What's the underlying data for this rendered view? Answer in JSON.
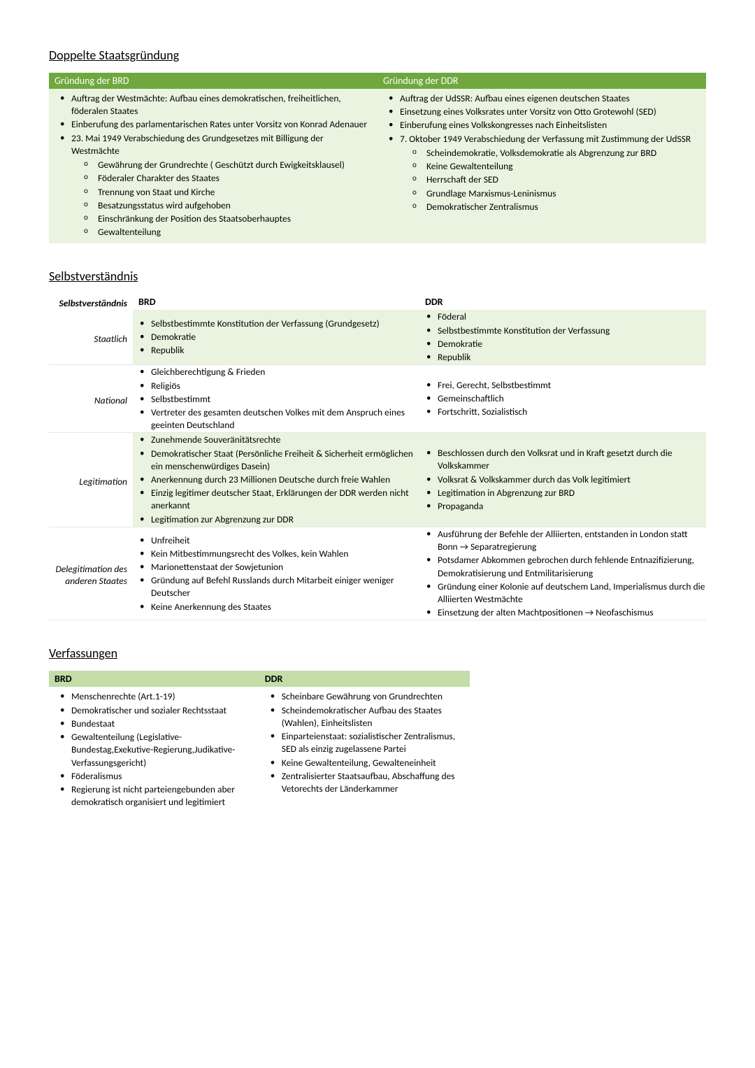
{
  "colors": {
    "header_green": "#6ea83e",
    "light_green": "#c3dca8",
    "shaded_green": "#eaf3e0",
    "text": "#000000",
    "border": "#e6e6e6",
    "background": "#ffffff"
  },
  "typography": {
    "base_font": "Calibri",
    "base_size_pt": 11,
    "heading_size_pt": 14
  },
  "section1": {
    "title": "Doppelte Staatsgründung",
    "col1_header": "Gründung der BRD",
    "col2_header": "Gründung der DDR",
    "col1": {
      "items": [
        "Auftrag der Westmächte: Aufbau eines demokratischen, freiheitlichen, föderalen Staates",
        "Einberufung des parlamentarischen Rates unter Vorsitz von Konrad Adenauer",
        "23. Mai 1949 Verabschiedung des Grundgesetzes mit Billigung der Westmächte"
      ],
      "sub": [
        "Gewährung der Grundrechte ( Geschützt durch Ewigkeitsklausel)",
        "Föderaler Charakter des Staates",
        "Trennung von Staat und Kirche",
        "Besatzungsstatus wird aufgehoben",
        "Einschränkung der Position des Staatsoberhauptes",
        "Gewaltenteilung"
      ]
    },
    "col2": {
      "items": [
        "Auftrag der UdSSR: Aufbau eines eigenen deutschen Staates",
        "Einsetzung eines Volksrates unter Vorsitz von Otto Grotewohl (SED)",
        "Einberufung eines Volkskongresses nach Einheitslisten",
        "7. Oktober 1949 Verabschiedung der Verfassung mit Zustimmung der UdSSR"
      ],
      "sub": [
        "Scheindemokratie, Volksdemokratie als Abgrenzung zur BRD",
        "Keine Gewaltenteilung",
        "Herrschaft der SED",
        "Grundlage Marxismus-Leninismus",
        "Demokratischer Zentralismus"
      ]
    }
  },
  "section2": {
    "title": "Selbstverständnis",
    "row_header_label": "Selbstverständnis",
    "col1_header": "BRD",
    "col2_header": "DDR",
    "rows": [
      {
        "label": "Staatlich",
        "shaded": true,
        "brd": [
          "Selbstbestimmte Konstitution der Verfassung (Grundgesetz)",
          "Demokratie",
          "Republik"
        ],
        "ddr": [
          "Föderal",
          "Selbstbestimmte Konstitution der Verfassung",
          "Demokratie",
          "Republik"
        ]
      },
      {
        "label": "National",
        "shaded": false,
        "brd": [
          "Gleichberechtigung & Frieden",
          "Religiös",
          "Selbstbestimmt",
          "Vertreter des gesamten deutschen Volkes mit dem Anspruch eines geeinten Deutschland"
        ],
        "ddr": [
          "Frei, Gerecht, Selbstbestimmt",
          "Gemeinschaftlich",
          "Fortschritt, Sozialistisch"
        ]
      },
      {
        "label": "Legitimation",
        "shaded": true,
        "brd": [
          "Zunehmende Souveränitätsrechte",
          "Demokratischer Staat (Persönliche Freiheit & Sicherheit ermöglichen ein menschenwürdiges Dasein)",
          "Anerkennung durch 23 Millionen Deutsche durch freie Wahlen",
          "Einzig legitimer deutscher Staat, Erklärungen der DDR werden nicht anerkannt",
          "Legitimation zur Abgrenzung zur DDR"
        ],
        "ddr": [
          "Beschlossen durch den Volksrat und in Kraft gesetzt durch die Volkskammer",
          "Volksrat & Volkskammer durch das Volk legitimiert",
          "Legitimation in Abgrenzung zur BRD",
          "Propaganda"
        ]
      },
      {
        "label": "Delegitimation des anderen Staates",
        "shaded": false,
        "brd": [
          "Unfreiheit",
          "Kein Mitbestimmungsrecht des Volkes, kein Wahlen",
          "Marionettenstaat der Sowjetunion",
          "Gründung auf Befehl Russlands durch Mitarbeit einiger weniger Deutscher",
          "Keine Anerkennung des Staates"
        ],
        "ddr": [
          "Ausführung der Befehle der Alliierten, entstanden in London statt Bonn → Separatregierung",
          "Potsdamer Abkommen gebrochen durch fehlende Entnazifizierung, Demokratisierung und Entmilitarisierung",
          "Gründung einer Kolonie auf deutschem Land, Imperialismus durch die Alliierten Westmächte",
          "Einsetzung der alten Machtpositionen → Neofaschismus"
        ]
      }
    ]
  },
  "section3": {
    "title": "Verfassungen",
    "col1_header": "BRD",
    "col2_header": "DDR",
    "col1": [
      "Menschenrechte (Art.1-19)",
      "Demokratischer und sozialer Rechtsstaat",
      "Bundestaat",
      "Gewaltenteilung (Legislative-Bundestag,Exekutive-Regierung,Judikative-Verfassungsgericht)",
      "Föderalismus",
      "Regierung ist nicht parteiengebunden aber demokratisch organisiert und legitimiert"
    ],
    "col2": [
      "Scheinbare Gewährung von Grundrechten",
      "Scheindemokratischer Aufbau des Staates (Wahlen), Einheitslisten",
      "Einparteienstaat: sozialistischer Zentralismus, SED als einzig zugelassene Partei",
      "Keine Gewaltenteilung, Gewalteneinheit",
      "Zentralisierter Staatsaufbau, Abschaffung des Vetorechts der Länderkammer"
    ]
  }
}
